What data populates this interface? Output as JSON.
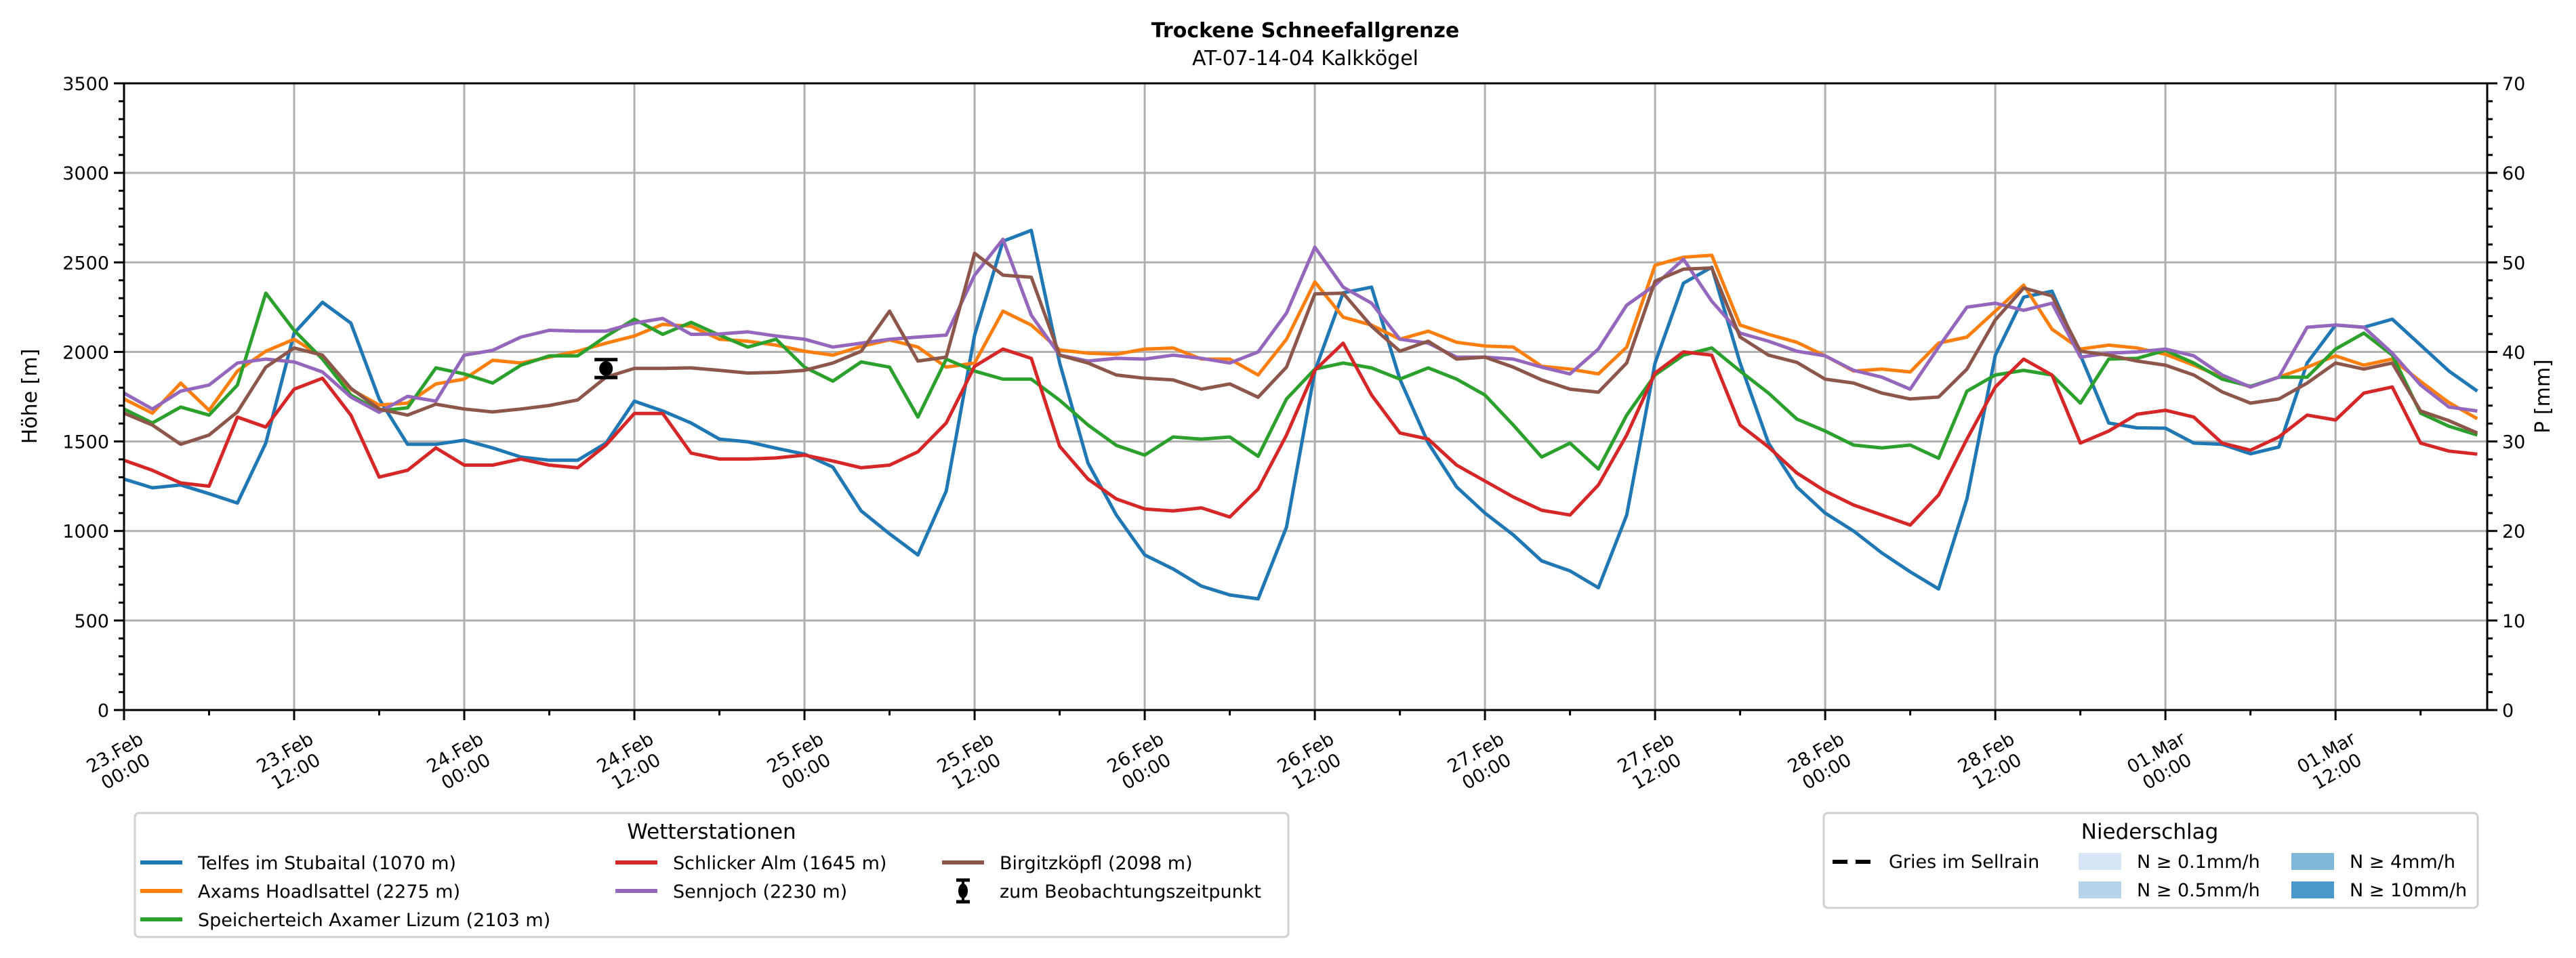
{
  "chart_data": {
    "type": "line",
    "title": "Trockene Schneefallgrenze",
    "subtitle": "AT-07-14-04 Kalkkögel",
    "ylabel": "Höhe [m]",
    "ylabel_right": "P [mm]",
    "ylim": [
      0,
      3500
    ],
    "ylim_right": [
      0,
      70
    ],
    "yticks": [
      0,
      500,
      1000,
      1500,
      2000,
      2500,
      3000,
      3500
    ],
    "yticks_right": [
      0,
      10,
      20,
      30,
      40,
      50,
      60,
      70
    ],
    "grid": true,
    "x_unit": "hours since 23.Feb 00:00",
    "xlim": [
      0,
      166.7
    ],
    "x_step_hours": 2,
    "xticks": [
      {
        "hour": 0,
        "label": [
          "23.Feb",
          "00:00"
        ]
      },
      {
        "hour": 12,
        "label": [
          "23.Feb",
          "12:00"
        ]
      },
      {
        "hour": 24,
        "label": [
          "24.Feb",
          "00:00"
        ]
      },
      {
        "hour": 36,
        "label": [
          "24.Feb",
          "12:00"
        ]
      },
      {
        "hour": 48,
        "label": [
          "25.Feb",
          "00:00"
        ]
      },
      {
        "hour": 60,
        "label": [
          "25.Feb",
          "12:00"
        ]
      },
      {
        "hour": 72,
        "label": [
          "26.Feb",
          "00:00"
        ]
      },
      {
        "hour": 84,
        "label": [
          "26.Feb",
          "12:00"
        ]
      },
      {
        "hour": 96,
        "label": [
          "27.Feb",
          "00:00"
        ]
      },
      {
        "hour": 108,
        "label": [
          "27.Feb",
          "12:00"
        ]
      },
      {
        "hour": 120,
        "label": [
          "28.Feb",
          "00:00"
        ]
      },
      {
        "hour": 132,
        "label": [
          "28.Feb",
          "12:00"
        ]
      },
      {
        "hour": 144,
        "label": [
          "01.Mar",
          "00:00"
        ]
      },
      {
        "hour": 156,
        "label": [
          "01.Mar",
          "12:00"
        ]
      }
    ],
    "series": [
      {
        "name": "Telfes im Stubaital (1070 m)",
        "color": "#1f77b4",
        "values": [
          1290,
          1241,
          1257,
          1208,
          1156,
          1491,
          2105,
          2277,
          2161,
          1737,
          1484,
          1484,
          1507,
          1464,
          1413,
          1395,
          1395,
          1491,
          1725,
          1670,
          1603,
          1513,
          1498,
          1462,
          1429,
          1357,
          1112,
          984,
          866,
          1223,
          2094,
          2618,
          2679,
          1938,
          1379,
          1089,
          866,
          788,
          692,
          643,
          621,
          1022,
          1893,
          2330,
          2362,
          1848,
          1491,
          1246,
          1100,
          978,
          833,
          777,
          683,
          1089,
          1938,
          2384,
          2473,
          1938,
          1491,
          1246,
          1100,
          1000,
          877,
          772,
          676,
          1179,
          1982,
          2306,
          2339,
          1982,
          1603,
          1576,
          1574,
          1491,
          1484,
          1431,
          1469,
          1938,
          2150,
          2138,
          2183,
          2038,
          1893,
          1781
        ]
      },
      {
        "name": "Axams Hoadlsattel (2275 m)",
        "color": "#ff7f0e",
        "values": [
          1737,
          1658,
          1826,
          1674,
          1893,
          2004,
          2071,
          1971,
          1792,
          1703,
          1714,
          1821,
          1848,
          1953,
          1938,
          1971,
          2004,
          2049,
          2089,
          2154,
          2143,
          2071,
          2060,
          2038,
          2004,
          1982,
          2031,
          2067,
          2027,
          1915,
          1938,
          2228,
          2150,
          2011,
          1993,
          1987,
          2016,
          2022,
          1960,
          1960,
          1871,
          2071,
          2391,
          2194,
          2150,
          2071,
          2116,
          2054,
          2033,
          2027,
          1920,
          1904,
          1877,
          2027,
          2484,
          2529,
          2540,
          2150,
          2098,
          2054,
          1978,
          1893,
          1904,
          1888,
          2049,
          2083,
          2228,
          2373,
          2127,
          2016,
          2038,
          2022,
          1987,
          1926,
          1859,
          1804,
          1859,
          1915,
          1978,
          1926,
          1960,
          1835,
          1717,
          1627
        ]
      },
      {
        "name": "Speicherteich Axamer Lizum (2103 m)",
        "color": "#2ca02c",
        "values": [
          1681,
          1603,
          1692,
          1647,
          1815,
          2328,
          2121,
          1960,
          1759,
          1670,
          1688,
          1911,
          1877,
          1826,
          1926,
          1978,
          1978,
          2087,
          2183,
          2098,
          2165,
          2094,
          2027,
          2071,
          1915,
          1837,
          1944,
          1915,
          1636,
          1960,
          1893,
          1848,
          1848,
          1730,
          1592,
          1478,
          1424,
          1525,
          1513,
          1525,
          1417,
          1737,
          1904,
          1938,
          1911,
          1848,
          1911,
          1848,
          1759,
          1592,
          1413,
          1491,
          1346,
          1647,
          1871,
          1982,
          2022,
          1893,
          1770,
          1625,
          1558,
          1480,
          1464,
          1480,
          1406,
          1781,
          1871,
          1897,
          1871,
          1714,
          1960,
          1964,
          2009,
          1938,
          1848,
          1808,
          1859,
          1859,
          2016,
          2105,
          1982,
          1658,
          1585,
          1536
        ]
      },
      {
        "name": "Schlicker Alm (1645 m)",
        "color": "#d62728",
        "values": [
          1395,
          1339,
          1268,
          1250,
          1636,
          1580,
          1792,
          1853,
          1647,
          1301,
          1339,
          1464,
          1368,
          1368,
          1402,
          1368,
          1353,
          1480,
          1656,
          1656,
          1435,
          1402,
          1402,
          1408,
          1424,
          1391,
          1353,
          1368,
          1442,
          1603,
          1920,
          2016,
          1964,
          1473,
          1290,
          1179,
          1123,
          1112,
          1129,
          1078,
          1234,
          1536,
          1897,
          2049,
          1759,
          1547,
          1513,
          1368,
          1279,
          1190,
          1116,
          1089,
          1257,
          1536,
          1882,
          2000,
          1982,
          1592,
          1469,
          1324,
          1223,
          1145,
          1089,
          1033,
          1201,
          1513,
          1804,
          1960,
          1871,
          1491,
          1558,
          1652,
          1674,
          1636,
          1491,
          1451,
          1525,
          1647,
          1620,
          1770,
          1804,
          1491,
          1446,
          1429
        ]
      },
      {
        "name": "Sennjoch (2230 m)",
        "color": "#9467bd",
        "values": [
          1770,
          1681,
          1781,
          1815,
          1938,
          1960,
          1944,
          1888,
          1748,
          1663,
          1752,
          1725,
          1982,
          2009,
          2083,
          2121,
          2116,
          2116,
          2161,
          2187,
          2098,
          2100,
          2112,
          2089,
          2071,
          2027,
          2049,
          2071,
          2083,
          2094,
          2429,
          2629,
          2205,
          1982,
          1949,
          1964,
          1960,
          1982,
          1964,
          1938,
          2000,
          2217,
          2585,
          2362,
          2272,
          2071,
          2049,
          1971,
          1971,
          1960,
          1915,
          1877,
          2016,
          2261,
          2373,
          2518,
          2283,
          2105,
          2060,
          2004,
          1978,
          1897,
          1859,
          1792,
          2027,
          2250,
          2272,
          2232,
          2272,
          1971,
          1993,
          2000,
          2016,
          1978,
          1871,
          1804,
          1859,
          2138,
          2150,
          2138,
          1993,
          1815,
          1692,
          1670
        ]
      },
      {
        "name": "Birgitzköpfl (2098 m)",
        "color": "#8c564b",
        "values": [
          1658,
          1592,
          1484,
          1536,
          1665,
          1915,
          2022,
          1982,
          1797,
          1681,
          1647,
          1708,
          1681,
          1665,
          1681,
          1701,
          1732,
          1859,
          1908,
          1908,
          1911,
          1897,
          1882,
          1886,
          1897,
          1938,
          2004,
          2228,
          1949,
          1971,
          2551,
          2429,
          2417,
          1982,
          1938,
          1871,
          1853,
          1844,
          1792,
          1821,
          1747,
          1915,
          2324,
          2328,
          2143,
          2004,
          2060,
          1960,
          1971,
          1915,
          1844,
          1792,
          1775,
          1938,
          2395,
          2462,
          2469,
          2083,
          1982,
          1942,
          1848,
          1826,
          1770,
          1737,
          1748,
          1904,
          2179,
          2357,
          2313,
          2004,
          1982,
          1949,
          1926,
          1871,
          1777,
          1714,
          1737,
          1826,
          1938,
          1904,
          1938,
          1670,
          1616,
          1547
        ]
      }
    ],
    "observation": {
      "name": "zum Beobachtungszeitpunkt",
      "hour": 34,
      "value": 1907,
      "error": 50,
      "color": "#000000"
    },
    "legend_stations": {
      "title": "Wetterstationen",
      "placement": "bottom-left"
    },
    "legend_precip": {
      "title": "Niederschlag",
      "placement": "bottom-right",
      "line": {
        "name": "Gries im Sellrain",
        "style": "dashed",
        "color": "#000000"
      },
      "bins": [
        {
          "label": "N ≥ 0.1mm/h",
          "color": "#d6e6f4"
        },
        {
          "label": "N ≥ 0.5mm/h",
          "color": "#b6d4e9"
        },
        {
          "label": "N ≥ 4mm/h",
          "color": "#80b8da"
        },
        {
          "label": "N ≥ 10mm/h",
          "color": "#4a98c9"
        }
      ]
    }
  }
}
